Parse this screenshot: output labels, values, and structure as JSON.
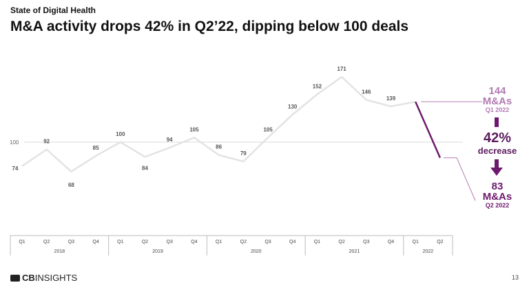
{
  "header": {
    "supertitle": "State of Digital Health",
    "title": "M&A activity drops 42% in Q2’22, dipping below 100 deals"
  },
  "chart_data": {
    "type": "line",
    "categories": [
      "Q1 2018",
      "Q2 2018",
      "Q3 2018",
      "Q4 2018",
      "Q1 2019",
      "Q2 2019",
      "Q3 2019",
      "Q4 2019",
      "Q1 2020",
      "Q2 2020",
      "Q3 2020",
      "Q4 2020",
      "Q1 2021",
      "Q2 2021",
      "Q3 2021",
      "Q4 2021",
      "Q1 2022",
      "Q2 2022"
    ],
    "quarters": [
      "Q1",
      "Q2",
      "Q3",
      "Q4",
      "Q1",
      "Q2",
      "Q3",
      "Q4",
      "Q1",
      "Q2",
      "Q3",
      "Q4",
      "Q1",
      "Q2",
      "Q3",
      "Q4",
      "Q1",
      "Q2"
    ],
    "years": [
      "2018",
      "2019",
      "2020",
      "2021",
      "2022"
    ],
    "values": [
      74,
      92,
      68,
      85,
      100,
      84,
      94,
      105,
      86,
      79,
      105,
      130,
      152,
      171,
      146,
      139,
      144,
      83
    ],
    "reference_line": {
      "value": 100,
      "label": "100"
    },
    "colors": {
      "line": "#e3e3e3",
      "drop": "#6d1a6e",
      "callout_light": "#b37bb4"
    }
  },
  "callout": {
    "top_value": "144",
    "top_unit": "M&As",
    "top_period": "Q1 2022",
    "pct": "42%",
    "pct_label": "decrease",
    "bottom_value": "83",
    "bottom_unit": "M&As",
    "bottom_period": "Q2 2022"
  },
  "footer": {
    "logo_cb": "CB",
    "logo_insights": "INSIGHTS",
    "page": "13"
  }
}
